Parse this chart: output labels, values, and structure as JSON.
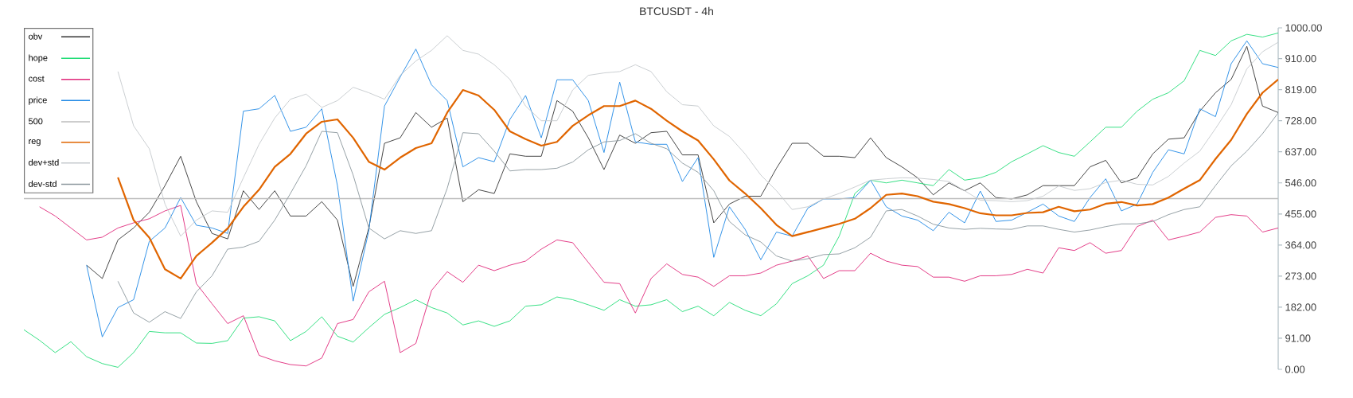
{
  "chart_data": {
    "type": "line",
    "title": "BTCUSDT - 4h",
    "categories": [
      null,
      null,
      null,
      null,
      null,
      null,
      null,
      null,
      null,
      null,
      null,
      null,
      null,
      null,
      null,
      null,
      null,
      null,
      null,
      null,
      null,
      null,
      null,
      null,
      null,
      null,
      null,
      null,
      null,
      null,
      null,
      null,
      null,
      null,
      null,
      null,
      null,
      null,
      null,
      null,
      null,
      null,
      null,
      null,
      null,
      null,
      null,
      null,
      null,
      null,
      null,
      null,
      null,
      null,
      null,
      null,
      null,
      null,
      null,
      null,
      null,
      null,
      null,
      null,
      null,
      null,
      null,
      null,
      null,
      null,
      null,
      null,
      null,
      null,
      null,
      null,
      null,
      null,
      null,
      null,
      null
    ],
    "ylim": [
      0,
      1000
    ],
    "yticks": [
      {
        "value": 0,
        "label": "0.00"
      },
      {
        "value": 91,
        "label": "91.00"
      },
      {
        "value": 182,
        "label": "182.00"
      },
      {
        "value": 273,
        "label": "273.00"
      },
      {
        "value": 364,
        "label": "364.00"
      },
      {
        "value": 455,
        "label": "455.00"
      },
      {
        "value": 546,
        "label": "546.00"
      },
      {
        "value": 637,
        "label": "637.00"
      },
      {
        "value": 728,
        "label": "728.00"
      },
      {
        "value": 819,
        "label": "819.00"
      },
      {
        "value": 910,
        "label": "910.00"
      },
      {
        "value": 1000,
        "label": "1000.00"
      }
    ],
    "tick_labels": "y",
    "legend": "top left",
    "series": [
      {
        "name": "obv",
        "color": "#333333",
        "values": [
          null,
          null,
          null,
          null,
          305,
          266,
          379,
          414,
          460,
          538,
          624,
          491,
          398,
          382,
          523,
          468,
          523,
          449,
          449,
          491,
          437,
          243,
          414,
          662,
          678,
          752,
          709,
          736,
          491,
          526,
          515,
          631,
          624,
          624,
          787,
          756,
          678,
          585,
          686,
          662,
          693,
          697,
          628,
          628,
          429,
          484,
          507,
          507,
          589,
          662,
          662,
          624,
          624,
          620,
          678,
          620,
          593,
          561,
          511,
          546,
          523,
          546,
          503,
          499,
          511,
          538,
          538,
          538,
          593,
          612,
          546,
          561,
          631,
          674,
          678,
          756,
          810,
          849,
          946,
          771,
          752
        ]
      },
      {
        "name": "hope",
        "color": "#22dd77",
        "values": [
          116,
          85,
          49,
          81,
          37,
          17,
          6,
          49,
          111,
          107,
          107,
          77,
          76,
          84,
          150,
          154,
          142,
          84,
          111,
          154,
          97,
          80,
          122,
          161,
          181,
          204,
          181,
          165,
          130,
          142,
          126,
          142,
          185,
          189,
          212,
          204,
          189,
          173,
          204,
          185,
          189,
          204,
          169,
          185,
          157,
          196,
          173,
          157,
          192,
          251,
          274,
          305,
          390,
          515,
          554,
          546,
          554,
          546,
          538,
          585,
          554,
          561,
          577,
          608,
          631,
          655,
          635,
          624,
          666,
          709,
          709,
          756,
          791,
          810,
          845,
          934,
          919,
          962,
          981,
          973,
          985
        ]
      },
      {
        "name": "cost",
        "color": "#e0287a",
        "values": [
          null,
          476,
          449,
          414,
          379,
          387,
          414,
          429,
          441,
          464,
          480,
          251,
          192,
          134,
          157,
          41,
          25,
          14,
          10,
          33,
          134,
          146,
          227,
          258,
          49,
          76,
          231,
          286,
          255,
          305,
          289,
          305,
          317,
          352,
          379,
          371,
          313,
          255,
          251,
          165,
          266,
          309,
          278,
          270,
          243,
          274,
          274,
          282,
          305,
          317,
          332,
          266,
          289,
          289,
          340,
          317,
          305,
          301,
          270,
          270,
          258,
          274,
          274,
          278,
          293,
          282,
          356,
          348,
          371,
          340,
          348,
          418,
          437,
          379,
          390,
          402,
          445,
          453,
          449,
          402,
          414
        ]
      },
      {
        "name": "price",
        "color": "#1e88e5",
        "values": [
          null,
          null,
          null,
          null,
          305,
          95,
          181,
          204,
          375,
          414,
          503,
          422,
          414,
          398,
          756,
          763,
          802,
          697,
          709,
          763,
          538,
          200,
          406,
          771,
          856,
          938,
          833,
          787,
          593,
          620,
          608,
          732,
          802,
          678,
          848,
          848,
          787,
          635,
          841,
          666,
          659,
          659,
          550,
          620,
          328,
          476,
          410,
          321,
          402,
          390,
          472,
          499,
          499,
          503,
          554,
          476,
          449,
          437,
          406,
          460,
          429,
          522,
          433,
          437,
          460,
          484,
          449,
          433,
          503,
          558,
          464,
          484,
          577,
          643,
          631,
          763,
          740,
          895,
          962,
          895,
          884
        ]
      },
      {
        "name": "500",
        "color": "#bdbdbd",
        "values": [
          500,
          500,
          500,
          500,
          500,
          500,
          500,
          500,
          500,
          500,
          500,
          500,
          500,
          500,
          500,
          500,
          500,
          500,
          500,
          500,
          500,
          500,
          500,
          500,
          500,
          500,
          500,
          500,
          500,
          500,
          500,
          500,
          500,
          500,
          500,
          500,
          500,
          500,
          500,
          500,
          500,
          500,
          500,
          500,
          500,
          500,
          500,
          500,
          500,
          500,
          500,
          500,
          500,
          500,
          500,
          500,
          500,
          500,
          500,
          500,
          500,
          500,
          500,
          500,
          500,
          500,
          500,
          500,
          500,
          500,
          500,
          500,
          500,
          500,
          500,
          500,
          500,
          500,
          500,
          500,
          500
        ]
      },
      {
        "name": "reg",
        "color": "#e06500",
        "values": [
          null,
          null,
          null,
          null,
          null,
          null,
          562,
          437,
          386,
          293,
          266,
          332,
          371,
          413,
          476,
          526,
          593,
          631,
          690,
          725,
          732,
          678,
          608,
          585,
          620,
          648,
          662,
          752,
          818,
          802,
          760,
          697,
          674,
          655,
          666,
          713,
          744,
          771,
          771,
          787,
          763,
          728,
          697,
          670,
          615,
          553,
          515,
          472,
          423,
          390,
          402,
          414,
          426,
          441,
          472,
          511,
          515,
          507,
          491,
          484,
          472,
          457,
          451,
          451,
          458,
          460,
          476,
          463,
          468,
          485,
          490,
          480,
          484,
          503,
          529,
          554,
          616,
          672,
          748,
          810,
          849
        ]
      },
      {
        "name": "dev+std",
        "color": "#c5cacd",
        "values": [
          null,
          null,
          null,
          null,
          null,
          null,
          872,
          713,
          646,
          484,
          390,
          437,
          464,
          460,
          561,
          659,
          736,
          791,
          806,
          767,
          787,
          826,
          810,
          791,
          861,
          903,
          934,
          977,
          934,
          923,
          892,
          849,
          771,
          728,
          728,
          818,
          861,
          868,
          872,
          892,
          872,
          813,
          775,
          771,
          713,
          682,
          631,
          569,
          523,
          468,
          476,
          499,
          515,
          534,
          554,
          558,
          561,
          560,
          556,
          550,
          523,
          495,
          494,
          491,
          494,
          507,
          537,
          524,
          529,
          547,
          554,
          542,
          540,
          565,
          604,
          639,
          705,
          775,
          880,
          930,
          958
        ]
      },
      {
        "name": "dev-std",
        "color": "#8a969c",
        "values": [
          null,
          null,
          null,
          null,
          null,
          null,
          258,
          165,
          138,
          169,
          149,
          227,
          274,
          352,
          358,
          375,
          437,
          515,
          596,
          697,
          693,
          569,
          414,
          382,
          406,
          398,
          406,
          530,
          693,
          690,
          639,
          581,
          585,
          585,
          589,
          607,
          643,
          666,
          670,
          690,
          662,
          646,
          604,
          577,
          523,
          433,
          394,
          373,
          332,
          317,
          324,
          336,
          338,
          356,
          387,
          464,
          468,
          449,
          425,
          414,
          410,
          413,
          411,
          410,
          420,
          420,
          410,
          402,
          408,
          418,
          426,
          426,
          433,
          453,
          468,
          476,
          538,
          596,
          639,
          690,
          751
        ]
      }
    ]
  }
}
